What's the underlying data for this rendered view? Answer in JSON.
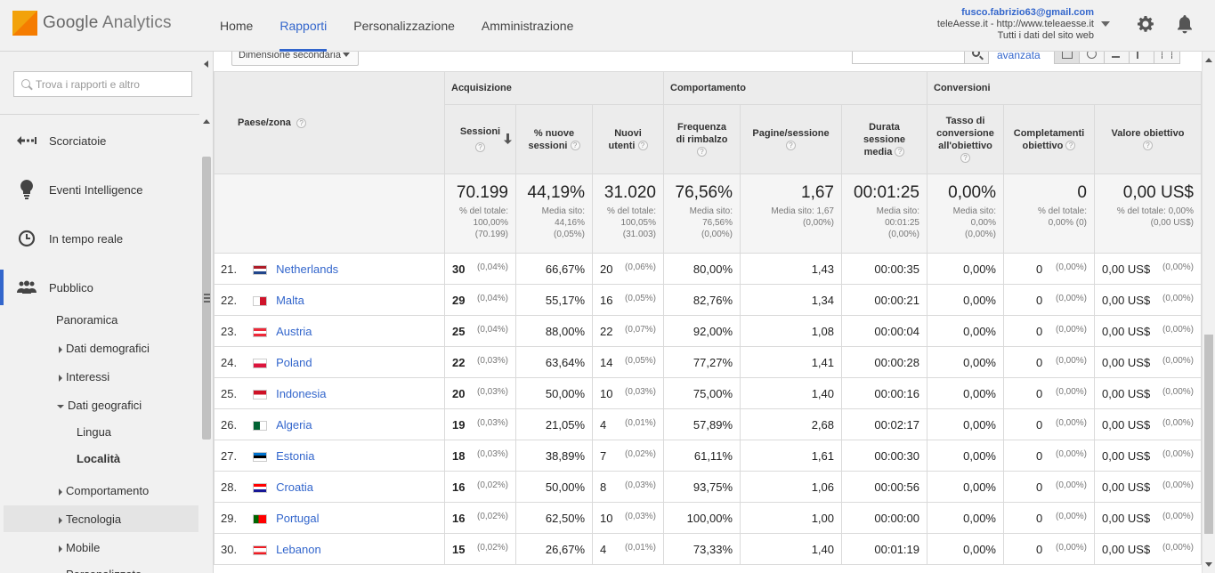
{
  "header": {
    "logo_google": "Google",
    "logo_analytics": "Analytics",
    "nav": [
      {
        "label": "Home",
        "active": false
      },
      {
        "label": "Rapporti",
        "active": true
      },
      {
        "label": "Personalizzazione",
        "active": false
      },
      {
        "label": "Amministrazione",
        "active": false
      }
    ],
    "account": {
      "email": "fusco.fabrizio63@gmail.com",
      "site": "teleAesse.it - http://www.teleaesse.it",
      "view": "Tutti i dati del sito web"
    },
    "icons": {
      "settings": "gear-icon",
      "notifications": "bell-icon"
    }
  },
  "sidebar": {
    "search_placeholder": "Trova i rapporti e altro",
    "sections": [
      {
        "label": "Scorciatoie",
        "icon": "shortcuts-icon"
      },
      {
        "label": "Eventi Intelligence",
        "icon": "lightbulb-icon"
      },
      {
        "label": "In tempo reale",
        "icon": "clock-icon"
      },
      {
        "label": "Pubblico",
        "icon": "people-icon",
        "active": true
      }
    ],
    "sub": {
      "panoramica": "Panoramica",
      "dati_demografici": "Dati demografici",
      "interessi": "Interessi",
      "dati_geografici": "Dati geografici",
      "lingua": "Lingua",
      "localita": "Località",
      "comportamento": "Comportamento",
      "tecnologia": "Tecnologia",
      "mobile": "Mobile",
      "cut": "Personalizzato"
    }
  },
  "toolbar": {
    "secondary_dimension": "Dimensione secondaria",
    "advanced": "avanzata"
  },
  "table": {
    "groups": {
      "acquisizione": "Acquisizione",
      "comportamento": "Comportamento",
      "conversioni": "Conversioni"
    },
    "headers": {
      "paese": "Paese/zona",
      "sessioni": "Sessioni",
      "nuove_sessioni_1": "% nuove",
      "nuove_sessioni_2": "sessioni",
      "nuovi_utenti_1": "Nuovi",
      "nuovi_utenti_2": "utenti",
      "rimbalzo_1": "Frequenza",
      "rimbalzo_2": "di rimbalzo",
      "pagine": "Pagine/sessione",
      "durata_1": "Durata",
      "durata_2": "sessione",
      "durata_3": "media",
      "tasso_1": "Tasso di",
      "tasso_2": "conversione",
      "tasso_3": "all'obiettivo",
      "completamenti_1": "Completamenti",
      "completamenti_2": "obiettivo",
      "valore": "Valore obiettivo",
      "help": "?"
    },
    "totals": {
      "sessioni": {
        "big": "70.199",
        "s1": "% del totale:",
        "s2": "100,00%",
        "s3": "(70.199)"
      },
      "nuove": {
        "big": "44,19%",
        "s1": "Media sito:",
        "s2": "44,16%",
        "s3": "(0,05%)"
      },
      "utenti": {
        "big": "31.020",
        "s1": "% del totale:",
        "s2": "100,05%",
        "s3": "(31.003)"
      },
      "rimbalzo": {
        "big": "76,56%",
        "s1": "Media sito:",
        "s2": "76,56%",
        "s3": "(0,00%)"
      },
      "pagine": {
        "big": "1,67",
        "s1": "Media sito: 1,67",
        "s2": "(0,00%)",
        "s3": ""
      },
      "durata": {
        "big": "00:01:25",
        "s1": "Media sito:",
        "s2": "00:01:25",
        "s3": "(0,00%)"
      },
      "tasso": {
        "big": "0,00%",
        "s1": "Media sito:",
        "s2": "0,00%",
        "s3": "(0,00%)"
      },
      "completamenti": {
        "big": "0",
        "s1": "% del totale:",
        "s2": "0,00% (0)",
        "s3": ""
      },
      "valore": {
        "big": "0,00 US$",
        "s1": "% del totale: 0,00%",
        "s2": "(0,00 US$)",
        "s3": ""
      }
    },
    "rows": [
      {
        "rank": "21.",
        "country": "Netherlands",
        "flag": "nl",
        "sess": "30",
        "sess_pct": "(0,04%)",
        "new_pct": "66,67%",
        "users": "20",
        "users_pct": "(0,06%)",
        "bounce": "80,00%",
        "pages": "1,43",
        "dur": "00:00:35",
        "conv": "0,00%",
        "comp": "0",
        "comp_pct": "(0,00%)",
        "val": "0,00 US$",
        "val_pct": "(0,00%)"
      },
      {
        "rank": "22.",
        "country": "Malta",
        "flag": "mt",
        "sess": "29",
        "sess_pct": "(0,04%)",
        "new_pct": "55,17%",
        "users": "16",
        "users_pct": "(0,05%)",
        "bounce": "82,76%",
        "pages": "1,34",
        "dur": "00:00:21",
        "conv": "0,00%",
        "comp": "0",
        "comp_pct": "(0,00%)",
        "val": "0,00 US$",
        "val_pct": "(0,00%)"
      },
      {
        "rank": "23.",
        "country": "Austria",
        "flag": "at",
        "sess": "25",
        "sess_pct": "(0,04%)",
        "new_pct": "88,00%",
        "users": "22",
        "users_pct": "(0,07%)",
        "bounce": "92,00%",
        "pages": "1,08",
        "dur": "00:00:04",
        "conv": "0,00%",
        "comp": "0",
        "comp_pct": "(0,00%)",
        "val": "0,00 US$",
        "val_pct": "(0,00%)"
      },
      {
        "rank": "24.",
        "country": "Poland",
        "flag": "pl",
        "sess": "22",
        "sess_pct": "(0,03%)",
        "new_pct": "63,64%",
        "users": "14",
        "users_pct": "(0,05%)",
        "bounce": "77,27%",
        "pages": "1,41",
        "dur": "00:00:28",
        "conv": "0,00%",
        "comp": "0",
        "comp_pct": "(0,00%)",
        "val": "0,00 US$",
        "val_pct": "(0,00%)"
      },
      {
        "rank": "25.",
        "country": "Indonesia",
        "flag": "id",
        "sess": "20",
        "sess_pct": "(0,03%)",
        "new_pct": "50,00%",
        "users": "10",
        "users_pct": "(0,03%)",
        "bounce": "75,00%",
        "pages": "1,40",
        "dur": "00:00:16",
        "conv": "0,00%",
        "comp": "0",
        "comp_pct": "(0,00%)",
        "val": "0,00 US$",
        "val_pct": "(0,00%)"
      },
      {
        "rank": "26.",
        "country": "Algeria",
        "flag": "dz",
        "sess": "19",
        "sess_pct": "(0,03%)",
        "new_pct": "21,05%",
        "users": "4",
        "users_pct": "(0,01%)",
        "bounce": "57,89%",
        "pages": "2,68",
        "dur": "00:02:17",
        "conv": "0,00%",
        "comp": "0",
        "comp_pct": "(0,00%)",
        "val": "0,00 US$",
        "val_pct": "(0,00%)"
      },
      {
        "rank": "27.",
        "country": "Estonia",
        "flag": "ee",
        "sess": "18",
        "sess_pct": "(0,03%)",
        "new_pct": "38,89%",
        "users": "7",
        "users_pct": "(0,02%)",
        "bounce": "61,11%",
        "pages": "1,61",
        "dur": "00:00:30",
        "conv": "0,00%",
        "comp": "0",
        "comp_pct": "(0,00%)",
        "val": "0,00 US$",
        "val_pct": "(0,00%)"
      },
      {
        "rank": "28.",
        "country": "Croatia",
        "flag": "hr",
        "sess": "16",
        "sess_pct": "(0,02%)",
        "new_pct": "50,00%",
        "users": "8",
        "users_pct": "(0,03%)",
        "bounce": "93,75%",
        "pages": "1,06",
        "dur": "00:00:56",
        "conv": "0,00%",
        "comp": "0",
        "comp_pct": "(0,00%)",
        "val": "0,00 US$",
        "val_pct": "(0,00%)"
      },
      {
        "rank": "29.",
        "country": "Portugal",
        "flag": "pt",
        "sess": "16",
        "sess_pct": "(0,02%)",
        "new_pct": "62,50%",
        "users": "10",
        "users_pct": "(0,03%)",
        "bounce": "100,00%",
        "pages": "1,00",
        "dur": "00:00:00",
        "conv": "0,00%",
        "comp": "0",
        "comp_pct": "(0,00%)",
        "val": "0,00 US$",
        "val_pct": "(0,00%)"
      },
      {
        "rank": "30.",
        "country": "Lebanon",
        "flag": "lb",
        "sess": "15",
        "sess_pct": "(0,02%)",
        "new_pct": "26,67%",
        "users": "4",
        "users_pct": "(0,01%)",
        "bounce": "73,33%",
        "pages": "1,40",
        "dur": "00:01:19",
        "conv": "0,00%",
        "comp": "0",
        "comp_pct": "(0,00%)",
        "val": "0,00 US$",
        "val_pct": "(0,00%)"
      }
    ]
  }
}
